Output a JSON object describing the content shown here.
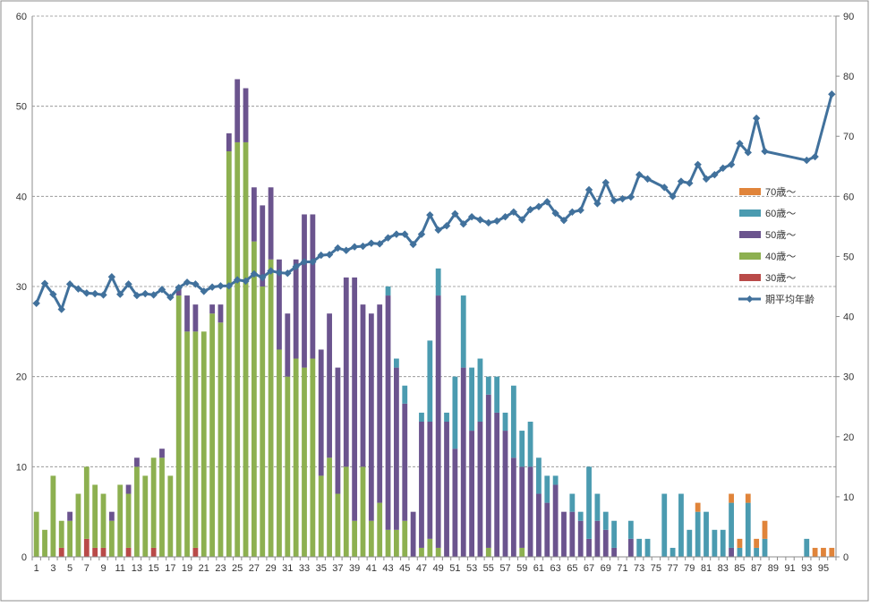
{
  "chart_data": {
    "type": "bar",
    "stacked": true,
    "categories": [
      "1",
      "2",
      "3",
      "4",
      "5",
      "6",
      "7",
      "8",
      "9",
      "10",
      "11",
      "12",
      "13",
      "14",
      "15",
      "16",
      "17",
      "18",
      "19",
      "20",
      "21",
      "22",
      "23",
      "24",
      "25",
      "26",
      "27",
      "28",
      "29",
      "30",
      "31",
      "32",
      "33",
      "34",
      "35",
      "36",
      "37",
      "38",
      "39",
      "40",
      "41",
      "42",
      "43",
      "44",
      "45",
      "46",
      "47",
      "48",
      "49",
      "50",
      "51",
      "52",
      "53",
      "54",
      "55",
      "56",
      "57",
      "58",
      "59",
      "60",
      "61",
      "62",
      "63",
      "64",
      "65",
      "66",
      "67",
      "68",
      "69",
      "70",
      "71",
      "72",
      "73",
      "74",
      "75",
      "76",
      "77",
      "78",
      "79",
      "80",
      "81",
      "82",
      "83",
      "84",
      "85",
      "86",
      "87",
      "88",
      "89",
      "90",
      "91",
      "92",
      "93",
      "94",
      "95",
      "96"
    ],
    "x_tick_labels": [
      "1",
      "3",
      "5",
      "7",
      "9",
      "11",
      "13",
      "15",
      "17",
      "19",
      "21",
      "23",
      "25",
      "27",
      "29",
      "31",
      "33",
      "35",
      "37",
      "39",
      "41",
      "43",
      "45",
      "47",
      "49",
      "51",
      "53",
      "55",
      "57",
      "59",
      "61",
      "63",
      "65",
      "67",
      "69",
      "71",
      "73",
      "75",
      "77",
      "79",
      "81",
      "83",
      "85",
      "87",
      "89",
      "91",
      "93",
      "95"
    ],
    "y_left": {
      "ylim": [
        0,
        60
      ],
      "ticks": [
        "0",
        "10",
        "20",
        "30",
        "40",
        "50",
        "60"
      ]
    },
    "y_right": {
      "ylim": [
        0,
        90
      ],
      "ticks": [
        "0",
        "10",
        "20",
        "30",
        "40",
        "50",
        "60",
        "70",
        "80",
        "90"
      ]
    },
    "grid": "horizontal-dashed",
    "legend_position": "right",
    "series": [
      {
        "name": "30歳～",
        "color": "#b94a48",
        "axis": "left",
        "values": [
          0,
          0,
          0,
          1,
          0,
          0,
          2,
          1,
          1,
          0,
          0,
          1,
          0,
          0,
          1,
          0,
          0,
          0,
          0,
          1,
          0,
          0,
          0,
          0,
          0,
          0,
          0,
          0,
          0,
          0,
          0,
          0,
          0,
          0,
          0,
          0,
          0,
          0,
          0,
          0,
          0,
          0,
          0,
          0,
          0,
          0,
          0,
          0,
          0,
          0,
          0,
          0,
          0,
          0,
          0,
          0,
          0,
          0,
          0,
          0,
          0,
          0,
          0,
          0,
          0,
          0,
          0,
          0,
          0,
          0,
          0,
          0,
          0,
          0,
          0,
          0,
          0,
          0,
          0,
          0,
          0,
          0,
          0,
          0,
          0,
          0,
          0,
          0,
          0,
          0,
          0,
          0,
          0,
          0,
          0,
          0
        ]
      },
      {
        "name": "40歳～",
        "color": "#8db050",
        "axis": "left",
        "values": [
          5,
          3,
          9,
          3,
          4,
          7,
          8,
          7,
          6,
          4,
          8,
          6,
          10,
          9,
          10,
          11,
          9,
          29,
          25,
          24,
          25,
          27,
          26,
          45,
          46,
          46,
          35,
          30,
          33,
          23,
          20,
          22,
          21,
          22,
          9,
          11,
          7,
          10,
          4,
          10,
          4,
          6,
          3,
          3,
          4,
          0,
          1,
          2,
          1,
          0,
          0,
          0,
          0,
          0,
          1,
          0,
          0,
          0,
          1,
          0,
          0,
          0,
          0,
          0,
          0,
          0,
          0,
          0,
          0,
          0,
          0,
          0,
          0,
          0,
          0,
          0,
          0,
          0,
          0,
          0,
          0,
          0,
          0,
          0,
          0,
          0,
          0,
          0,
          0,
          0,
          0,
          0,
          0,
          0,
          0,
          0
        ]
      },
      {
        "name": "50歳～",
        "color": "#6b548e",
        "axis": "left",
        "values": [
          0,
          0,
          0,
          0,
          1,
          0,
          0,
          0,
          0,
          1,
          0,
          1,
          1,
          0,
          0,
          1,
          0,
          1,
          4,
          3,
          0,
          1,
          2,
          2,
          7,
          6,
          6,
          9,
          8,
          10,
          7,
          11,
          17,
          16,
          14,
          16,
          14,
          21,
          27,
          18,
          23,
          22,
          26,
          18,
          13,
          5,
          14,
          13,
          28,
          15,
          12,
          21,
          14,
          15,
          17,
          16,
          14,
          11,
          9,
          10,
          7,
          6,
          8,
          5,
          5,
          4,
          2,
          4,
          3,
          1,
          0,
          2,
          0,
          0,
          0,
          0,
          0,
          0,
          0,
          0,
          0,
          0,
          0,
          1,
          0,
          0,
          0,
          0,
          0,
          0,
          0,
          0,
          0,
          0,
          0,
          0
        ]
      },
      {
        "name": "60歳～",
        "color": "#4b9bb0",
        "axis": "left",
        "values": [
          0,
          0,
          0,
          0,
          0,
          0,
          0,
          0,
          0,
          0,
          0,
          0,
          0,
          0,
          0,
          0,
          0,
          0,
          0,
          0,
          0,
          0,
          0,
          0,
          0,
          0,
          0,
          0,
          0,
          0,
          0,
          0,
          0,
          0,
          0,
          0,
          0,
          0,
          0,
          0,
          0,
          0,
          1,
          1,
          2,
          0,
          1,
          9,
          3,
          1,
          8,
          8,
          7,
          7,
          2,
          4,
          2,
          8,
          4,
          5,
          4,
          3,
          1,
          0,
          2,
          1,
          8,
          3,
          2,
          3,
          0,
          2,
          2,
          2,
          0,
          7,
          1,
          7,
          3,
          5,
          5,
          3,
          3,
          5,
          1,
          6,
          1,
          2,
          0,
          0,
          0,
          0,
          2,
          0,
          0,
          0
        ]
      },
      {
        "name": "70歳～",
        "color": "#e0843a",
        "axis": "left",
        "values": [
          0,
          0,
          0,
          0,
          0,
          0,
          0,
          0,
          0,
          0,
          0,
          0,
          0,
          0,
          0,
          0,
          0,
          0,
          0,
          0,
          0,
          0,
          0,
          0,
          0,
          0,
          0,
          0,
          0,
          0,
          0,
          0,
          0,
          0,
          0,
          0,
          0,
          0,
          0,
          0,
          0,
          0,
          0,
          0,
          0,
          0,
          0,
          0,
          0,
          0,
          0,
          0,
          0,
          0,
          0,
          0,
          0,
          0,
          0,
          0,
          0,
          0,
          0,
          0,
          0,
          0,
          0,
          0,
          0,
          0,
          0,
          0,
          0,
          0,
          0,
          0,
          0,
          0,
          0,
          1,
          0,
          0,
          0,
          1,
          1,
          1,
          1,
          2,
          0,
          0,
          0,
          0,
          0,
          1,
          1,
          1
        ]
      },
      {
        "name": "期平均年齢",
        "type": "line",
        "color": "#41719c",
        "axis": "right",
        "values": [
          42.2,
          45.5,
          43.7,
          41.2,
          45.4,
          44.6,
          43.9,
          43.8,
          43.6,
          46.6,
          43.7,
          45.4,
          43.5,
          43.8,
          43.6,
          44.5,
          43.2,
          44.8,
          45.7,
          45.4,
          44.2,
          44.9,
          45.1,
          45.1,
          46.1,
          45.9,
          47.1,
          46.5,
          47.6,
          47.3,
          47.2,
          48.3,
          49.1,
          49.1,
          50.2,
          50.3,
          51.4,
          51.0,
          51.6,
          51.7,
          52.2,
          52.1,
          53.1,
          53.7,
          53.7,
          52.0,
          53.7,
          56.9,
          54.4,
          55.1,
          57.1,
          55.4,
          56.6,
          56.1,
          55.6,
          55.9,
          56.6,
          57.4,
          56.1,
          57.8,
          58.3,
          59.1,
          57.2,
          56.0,
          57.4,
          57.7,
          61.1,
          58.8,
          62.3,
          59.3,
          59.6,
          59.9,
          63.6,
          62.9,
          null,
          61.5,
          60.0,
          62.5,
          62.2,
          65.3,
          62.9,
          63.6,
          64.7,
          65.3,
          68.8,
          67.3,
          73.0,
          67.5,
          null,
          null,
          null,
          null,
          66.0,
          66.6,
          null,
          77.0
        ]
      }
    ]
  }
}
